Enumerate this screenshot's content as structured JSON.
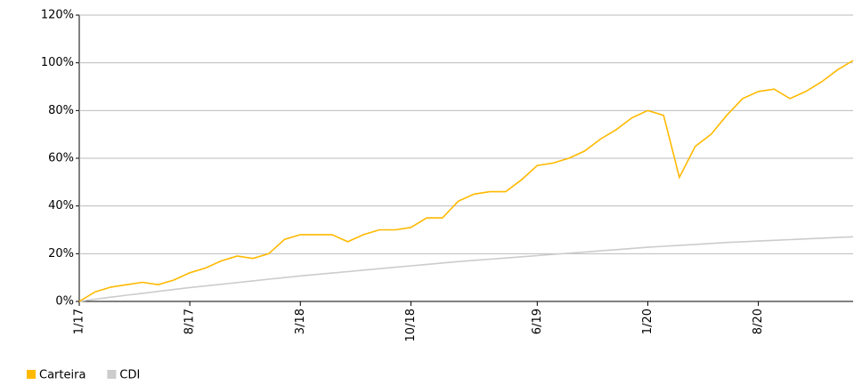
{
  "chart_data": {
    "type": "line",
    "categories": [
      "1/17",
      null,
      null,
      null,
      null,
      null,
      null,
      "8/17",
      null,
      null,
      null,
      null,
      null,
      null,
      "3/18",
      null,
      null,
      null,
      null,
      null,
      null,
      "10/18",
      null,
      null,
      null,
      null,
      null,
      null,
      null,
      "6/19",
      null,
      null,
      null,
      null,
      null,
      null,
      "1/20",
      null,
      null,
      null,
      null,
      null,
      null,
      "8/20",
      null,
      null,
      null,
      null,
      null,
      null
    ],
    "series": [
      {
        "name": "Carteira",
        "color": "#ffb900",
        "values": [
          0,
          4,
          6,
          7,
          8,
          7,
          9,
          12,
          14,
          17,
          19,
          18,
          20,
          26,
          28,
          28,
          28,
          25,
          28,
          30,
          30,
          31,
          35,
          35,
          42,
          45,
          46,
          46,
          51,
          57,
          58,
          60,
          63,
          68,
          72,
          77,
          80,
          78,
          52,
          65,
          70,
          78,
          85,
          88,
          89,
          85,
          88,
          92,
          97,
          101
        ]
      },
      {
        "name": "CDI",
        "color": "#cccccc",
        "values": [
          0,
          0.9,
          1.8,
          2.6,
          3.4,
          4.2,
          5,
          5.8,
          6.5,
          7.2,
          7.9,
          8.6,
          9.3,
          10,
          10.7,
          11.3,
          11.9,
          12.5,
          13.1,
          13.7,
          14.3,
          14.9,
          15.5,
          16.1,
          16.7,
          17.2,
          17.7,
          18.2,
          18.7,
          19.2,
          19.7,
          20.2,
          20.7,
          21.2,
          21.7,
          22.2,
          22.7,
          23.1,
          23.5,
          23.9,
          24.3,
          24.7,
          25,
          25.3,
          25.6,
          25.9,
          26.2,
          26.5,
          26.8,
          27.1
        ]
      }
    ],
    "ylim": [
      0,
      120
    ],
    "yticks": [
      {
        "value": 0,
        "label": "0%"
      },
      {
        "value": 20,
        "label": "20%"
      },
      {
        "value": 40,
        "label": "40%"
      },
      {
        "value": 60,
        "label": "60%"
      },
      {
        "value": 80,
        "label": "80%"
      },
      {
        "value": 100,
        "label": "100%"
      },
      {
        "value": 120,
        "label": "120%"
      }
    ],
    "grid": true,
    "legend": "bottom-left"
  }
}
